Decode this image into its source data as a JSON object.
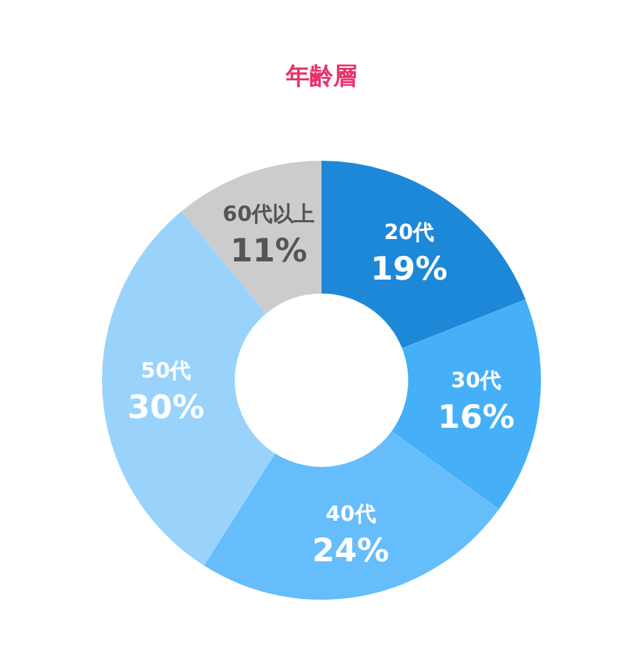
{
  "chart_data": {
    "type": "donut",
    "title": "年齢層",
    "categories": [
      "20代",
      "30代",
      "40代",
      "50代",
      "60代以上"
    ],
    "values": [
      19,
      16,
      24,
      30,
      11
    ],
    "value_labels": [
      "19%",
      "16%",
      "24%",
      "30%",
      "11%"
    ],
    "colors": [
      "#1e88d8",
      "#45b0f8",
      "#66bdfb",
      "#99d3fc",
      "#cccccc"
    ],
    "legend": false
  }
}
